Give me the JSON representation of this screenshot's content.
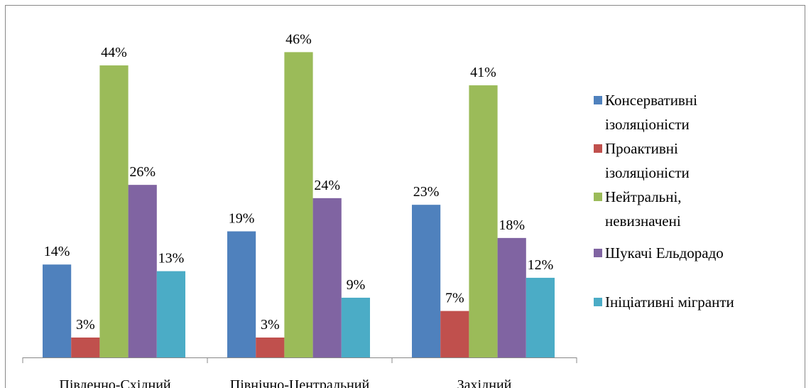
{
  "chart_data": {
    "type": "bar",
    "categories": [
      "Південно-Східний",
      "Північно-Центральний",
      "Західний"
    ],
    "series": [
      {
        "name": "Консервативні ізоляціоністи",
        "color": "#4f81bd",
        "values": [
          14,
          19,
          23
        ],
        "value_labels": [
          "14%",
          "19%",
          "23%"
        ]
      },
      {
        "name": "Проактивні ізоляціоністи",
        "color": "#c0504d",
        "values": [
          3,
          3,
          7
        ],
        "value_labels": [
          "3%",
          "3%",
          "7%"
        ]
      },
      {
        "name": "Нейтральні, невизначені",
        "color": "#9bbb59",
        "values": [
          44,
          46,
          41
        ],
        "value_labels": [
          "44%",
          "46%",
          "41%"
        ]
      },
      {
        "name": "Шукачі Ельдорадо",
        "color": "#8064a2",
        "values": [
          26,
          24,
          18
        ],
        "value_labels": [
          "26%",
          "24%",
          "18%"
        ]
      },
      {
        "name": "Ініціативні мігранти",
        "color": "#4bacc6",
        "values": [
          13,
          9,
          12
        ],
        "value_labels": [
          "13%",
          "9%",
          "12%"
        ]
      }
    ],
    "ylim": [
      0,
      50
    ],
    "legend": "right"
  }
}
